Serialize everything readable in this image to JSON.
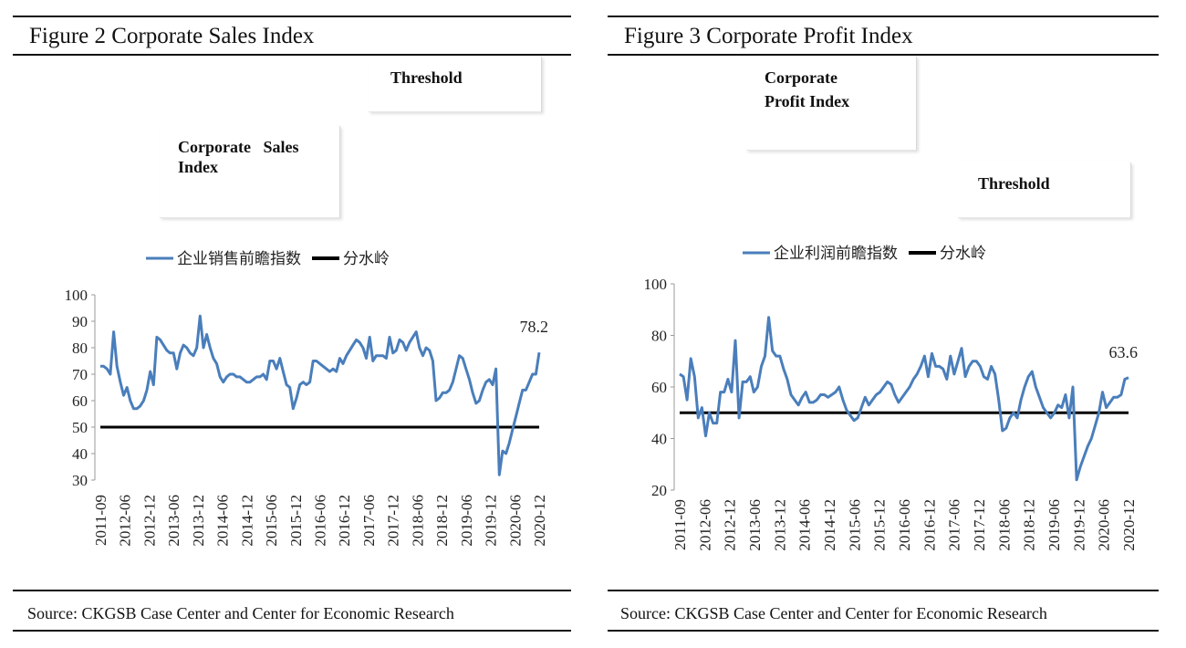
{
  "left": {
    "title": "Figure 2 Corporate Sales Index",
    "source": "Source: CKGSB Case Center and Center for Economic Research",
    "callouts": {
      "threshold": "Threshold",
      "index_line1": "Corporate   Sales",
      "index_line2": "Index"
    }
  },
  "right": {
    "title": "Figure 3 Corporate Profit Index",
    "source": "Source: CKGSB Case Center and Center for Economic Research",
    "callouts": {
      "index_line1": "Corporate",
      "index_line2": "Profit Index",
      "threshold": "Threshold"
    }
  },
  "colors": {
    "series": "#4a7ebb",
    "threshold": "#000000"
  },
  "chart_data": [
    {
      "type": "line",
      "title": "",
      "ylim": [
        30,
        100
      ],
      "yticks": [
        30,
        40,
        50,
        60,
        70,
        80,
        90,
        100
      ],
      "xtick_labels": [
        "2011-09",
        "2012-06",
        "2012-12",
        "2013-06",
        "2013-12",
        "2014-06",
        "2014-12",
        "2015-06",
        "2015-12",
        "2016-06",
        "2016-12",
        "2017-06",
        "2017-12",
        "2018-06",
        "2018-12",
        "2019-06",
        "2019-12",
        "2020-06",
        "2020-12"
      ],
      "legend_position": "top",
      "grid": false,
      "last_label": "78.2",
      "series": [
        {
          "name": "企业销售前瞻指数",
          "values": [
            73,
            73,
            72,
            70,
            86,
            73,
            67,
            62,
            65,
            60,
            57,
            57,
            58,
            60,
            64,
            71,
            66,
            84,
            83,
            81,
            79,
            78,
            78,
            72,
            78,
            81,
            80,
            78,
            77,
            80,
            92,
            80,
            85,
            80,
            76,
            74,
            69,
            67,
            69,
            70,
            70,
            69,
            69,
            68,
            67,
            67,
            68,
            69,
            69,
            70,
            68,
            75,
            75,
            72,
            76,
            71,
            66,
            65,
            57,
            61,
            66,
            67,
            66,
            67,
            75,
            75,
            74,
            73,
            72,
            71,
            72,
            71,
            76,
            74,
            77,
            79,
            81,
            83,
            82,
            80,
            76,
            84,
            75,
            77,
            77,
            77,
            76,
            84,
            78,
            79,
            83,
            82,
            79,
            82,
            84,
            86,
            80,
            77,
            80,
            79,
            75,
            60,
            61,
            63,
            63,
            64,
            67,
            72,
            77,
            76,
            72,
            68,
            63,
            59,
            60,
            64,
            67,
            68,
            66,
            72,
            32,
            41,
            40,
            44,
            49,
            54,
            59,
            64,
            64,
            67,
            70,
            70,
            78.2
          ]
        },
        {
          "name": "分水岭",
          "constant": 50
        }
      ]
    },
    {
      "type": "line",
      "title": "",
      "ylim": [
        20,
        100
      ],
      "yticks": [
        20,
        40,
        60,
        80,
        100
      ],
      "xtick_labels": [
        "2011-09",
        "2012-06",
        "2012-12",
        "2013-06",
        "2013-12",
        "2014-06",
        "2014-12",
        "2015-06",
        "2015-12",
        "2016-06",
        "2016-12",
        "2017-06",
        "2017-12",
        "2018-06",
        "2018-12",
        "2019-06",
        "2019-12",
        "2020-06",
        "2020-12"
      ],
      "legend_position": "top",
      "grid": false,
      "last_label": "63.6",
      "series": [
        {
          "name": "企业利润前瞻指数",
          "values": [
            65,
            64,
            55,
            71,
            64,
            48,
            52,
            41,
            50,
            46,
            46,
            58,
            58,
            63,
            58,
            78,
            48,
            62,
            62,
            64,
            58,
            60,
            68,
            72,
            87,
            74,
            72,
            72,
            67,
            63,
            57,
            55,
            53,
            56,
            58,
            54,
            54,
            55,
            57,
            57,
            56,
            57,
            58,
            60,
            55,
            51,
            49,
            47,
            48,
            52,
            56,
            53,
            55,
            57,
            58,
            60,
            62,
            61,
            57,
            54,
            56,
            58,
            60,
            63,
            65,
            68,
            72,
            64,
            73,
            68,
            68,
            67,
            63,
            72,
            65,
            70,
            75,
            64,
            68,
            70,
            70,
            68,
            64,
            63,
            68,
            65,
            55,
            43,
            44,
            48,
            50,
            48,
            55,
            60,
            64,
            66,
            60,
            56,
            52,
            50,
            48,
            50,
            53,
            52,
            57,
            48,
            60,
            24,
            29,
            33,
            37,
            40,
            45,
            50,
            58,
            52,
            54,
            56,
            56,
            57,
            63,
            63.6
          ]
        },
        {
          "name": "分水岭",
          "constant": 50
        }
      ]
    }
  ]
}
